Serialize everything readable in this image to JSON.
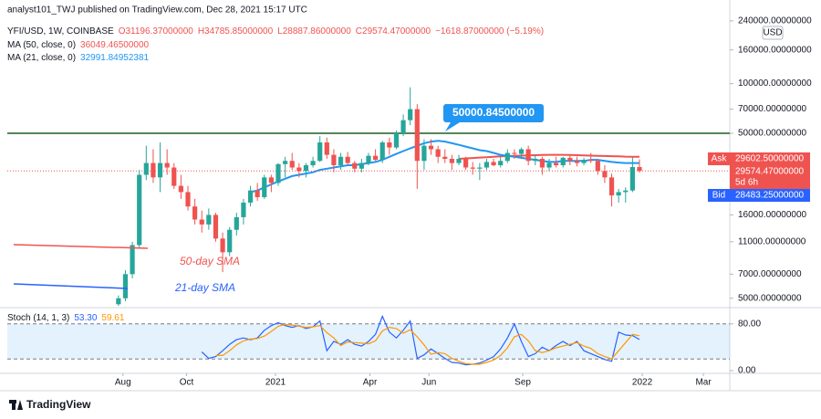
{
  "publisher": "analyst101_TWJ published on TradingView.com, Dec 28, 2021 15:17 UTC",
  "footer": "TradingView",
  "chart_data": [
    {
      "type": "candlestick",
      "symbol": "YFI/USD, 1W, COINBASE",
      "header_values": [
        "O31196.37000000",
        "H34785.85000000",
        "L28887.86000000",
        "C29574.47000000",
        "−1618.87000000 (−5.19%)"
      ],
      "open": [
        4600,
        5000,
        7000,
        10500,
        28000,
        33000,
        27000,
        33000,
        31000,
        24000,
        22000,
        18000,
        15000,
        14000,
        16000,
        11500,
        9500,
        13000,
        15500,
        19000,
        22500,
        20500,
        27000,
        25000,
        32500,
        34000,
        31000,
        29500,
        32000,
        34000,
        44000,
        37000,
        32000,
        36000,
        33000,
        30500,
        33000,
        36500,
        34500,
        44000,
        41000,
        50000,
        60000,
        70000,
        34000,
        42000,
        40000,
        36000,
        35000,
        33000,
        35000,
        31000,
        30500,
        31000,
        33500,
        32000,
        34000,
        38000,
        37500,
        40000,
        34000,
        35000,
        31000,
        33000,
        32000,
        35500,
        34000,
        33000,
        34500,
        34000,
        29500,
        27000,
        21000,
        22000,
        22500,
        31196.37
      ],
      "high": [
        5200,
        7400,
        11000,
        30000,
        42000,
        40000,
        44000,
        40000,
        33000,
        28000,
        24000,
        20000,
        17000,
        17500,
        16500,
        12500,
        13500,
        16500,
        20000,
        24000,
        25000,
        28000,
        28000,
        33000,
        36000,
        38000,
        33000,
        33000,
        36000,
        48000,
        47000,
        40000,
        38000,
        38500,
        34000,
        35000,
        38000,
        40000,
        45000,
        47000,
        52000,
        65000,
        95000,
        75000,
        46000,
        46000,
        42000,
        40000,
        37000,
        37000,
        36000,
        33500,
        33000,
        35000,
        35000,
        36000,
        40000,
        40000,
        41000,
        42000,
        37000,
        36000,
        35000,
        36000,
        36000,
        37000,
        36000,
        35500,
        38000,
        35000,
        32000,
        28500,
        23000,
        23500,
        36000,
        34785.85
      ],
      "low": [
        4500,
        4800,
        6600,
        10000,
        26000,
        25000,
        22000,
        28000,
        23000,
        20000,
        17000,
        14000,
        12500,
        13000,
        11000,
        7200,
        9000,
        12000,
        14000,
        18000,
        19500,
        20000,
        22000,
        24000,
        27000,
        30000,
        27000,
        27000,
        31000,
        33500,
        35000,
        29000,
        30000,
        32000,
        29000,
        29000,
        32000,
        34000,
        33000,
        37000,
        40000,
        48000,
        56000,
        23000,
        30000,
        37000,
        33000,
        33000,
        30000,
        32000,
        30000,
        28000,
        26000,
        30000,
        31500,
        31000,
        33000,
        35000,
        35000,
        32000,
        32000,
        28000,
        29500,
        31000,
        31000,
        32000,
        31500,
        32000,
        33000,
        28000,
        25000,
        18000,
        19000,
        19000,
        22000,
        28887.86
      ],
      "close": [
        5000,
        7000,
        10500,
        28000,
        33000,
        27000,
        33000,
        31000,
        24000,
        22000,
        18000,
        15000,
        14000,
        16000,
        11500,
        9500,
        13000,
        15500,
        19000,
        22500,
        20500,
        27000,
        25000,
        32500,
        34000,
        31000,
        29500,
        32000,
        34000,
        44000,
        37000,
        32000,
        36000,
        33000,
        30500,
        33000,
        36500,
        34500,
        44000,
        41000,
        50000,
        60000,
        70000,
        34000,
        42000,
        40000,
        36000,
        35000,
        33000,
        35000,
        31000,
        30500,
        31000,
        33500,
        32000,
        34000,
        38000,
        37500,
        40000,
        34000,
        35000,
        31000,
        33000,
        32000,
        35500,
        34000,
        33000,
        34500,
        34000,
        29500,
        27000,
        21000,
        22000,
        22500,
        31200,
        29574.47
      ],
      "up_color": "#26a69a",
      "down_color": "#ef5350",
      "log_scale": true,
      "ylim": [
        4500,
        290000
      ],
      "yticks": [
        {
          "value": 240000,
          "label": "240000.00000000"
        },
        {
          "value": 160000,
          "label": "160000.00000000"
        },
        {
          "value": 100000,
          "label": "100000.00000000"
        },
        {
          "value": 70000,
          "label": "70000.00000000"
        },
        {
          "value": 50000,
          "label": "50000.00000000"
        },
        {
          "value": 16000,
          "label": "16000.00000000"
        },
        {
          "value": 11000,
          "label": "11000.00000000"
        },
        {
          "value": 7000,
          "label": "7000.00000000"
        },
        {
          "value": 5000,
          "label": "5000.00000000"
        }
      ],
      "y_unit": "USD",
      "xlim": [
        -16,
        88
      ],
      "xticks": [
        {
          "value": 0.65,
          "label": "Aug"
        },
        {
          "value": 9.8,
          "label": "Oct"
        },
        {
          "value": 22.6,
          "label": "2021"
        },
        {
          "value": 36.2,
          "label": "Apr"
        },
        {
          "value": 44.7,
          "label": "Jun"
        },
        {
          "value": 58.2,
          "label": "Sep"
        },
        {
          "value": 75.4,
          "label": "2022"
        },
        {
          "value": 84.2,
          "label": "Mar"
        }
      ],
      "moving_averages": [
        {
          "name": "MA (50, close, 0)",
          "value_label": "36049.46500000",
          "color": "#ef5350",
          "values": [
            null,
            null,
            null,
            null,
            null,
            null,
            null,
            null,
            null,
            null,
            null,
            null,
            null,
            null,
            null,
            null,
            null,
            null,
            null,
            null,
            null,
            null,
            null,
            null,
            null,
            null,
            null,
            null,
            null,
            null,
            null,
            null,
            null,
            null,
            null,
            null,
            null,
            null,
            null,
            null,
            null,
            null,
            null,
            null,
            null,
            null,
            null,
            null,
            null,
            35000,
            35200,
            35400,
            35600,
            35800,
            36000,
            36200,
            36400,
            36500,
            36600,
            36700,
            36800,
            36900,
            37000,
            37000,
            37000,
            36900,
            36800,
            36700,
            36600,
            36500,
            36400,
            36300,
            36200,
            36100,
            36050,
            36049.47
          ]
        },
        {
          "name": "MA (21, close, 0)",
          "value_label": "32991.84952381",
          "color": "#2196f3",
          "values": [
            null,
            null,
            null,
            null,
            null,
            null,
            null,
            null,
            null,
            null,
            null,
            null,
            null,
            null,
            null,
            null,
            null,
            null,
            null,
            22000,
            22500,
            23500,
            24500,
            25500,
            26500,
            27500,
            28000,
            28500,
            29000,
            30000,
            30500,
            31000,
            31500,
            32000,
            32000,
            32500,
            33000,
            33500,
            34500,
            36000,
            37500,
            39000,
            40500,
            42000,
            43500,
            44500,
            45000,
            44500,
            43500,
            42500,
            41500,
            40500,
            39500,
            39000,
            38000,
            37000,
            36500,
            36000,
            35500,
            35000,
            34500,
            34000,
            33500,
            33500,
            34000,
            34000,
            34000,
            34000,
            34500,
            34500,
            34000,
            33500,
            33200,
            33000,
            33000,
            32991.85
          ]
        }
      ],
      "horizontal_line": {
        "value": 50000.845,
        "label": "50000.84500000",
        "color": "#1b5e20"
      },
      "last_price": 29574.47,
      "price_labels": {
        "ask_title": "Ask",
        "ask": "29602.50000000",
        "last": "29574.47000000",
        "countdown": "5d 6h",
        "bid_title": "Bid",
        "bid": "28483.25000000"
      },
      "annotations": [
        "50-day SMA",
        "21-day SMA"
      ]
    },
    {
      "type": "stochastic",
      "name": "Stoch (14, 1, 3)",
      "ylim": [
        0,
        100
      ],
      "yticks": [
        {
          "value": 80,
          "label": "80.00"
        },
        {
          "value": 0,
          "label": "0.00"
        }
      ],
      "band": [
        20,
        80
      ],
      "series": [
        {
          "color": "#2962ff",
          "value_label": "53.30",
          "values": [
            null,
            null,
            null,
            null,
            null,
            null,
            null,
            null,
            null,
            null,
            null,
            null,
            32,
            21,
            24,
            34,
            45,
            53,
            56,
            53,
            56,
            69,
            77,
            82,
            77,
            74,
            77,
            72,
            75,
            85,
            34,
            50,
            45,
            53,
            45,
            42,
            50,
            62,
            93,
            66,
            56,
            69,
            85,
            21,
            27,
            37,
            29,
            21,
            14,
            13,
            10,
            11,
            13,
            18,
            24,
            37,
            56,
            80,
            50,
            24,
            29,
            40,
            34,
            43,
            50,
            43,
            50,
            34,
            29,
            24,
            19,
            16,
            66,
            61,
            60,
            53.3
          ]
        },
        {
          "color": "#ff9800",
          "value_label": "59.61",
          "values": [
            null,
            null,
            null,
            null,
            null,
            null,
            null,
            null,
            null,
            null,
            null,
            null,
            null,
            null,
            26,
            26,
            34,
            44,
            51,
            54,
            55,
            59,
            67,
            76,
            79,
            78,
            76,
            74,
            75,
            77,
            65,
            56,
            43,
            49,
            48,
            47,
            46,
            51,
            68,
            74,
            72,
            64,
            70,
            58,
            44,
            28,
            31,
            29,
            21,
            16,
            12,
            11,
            11,
            14,
            18,
            26,
            39,
            58,
            62,
            51,
            34,
            31,
            34,
            39,
            42,
            45,
            48,
            42,
            38,
            29,
            24,
            20,
            34,
            48,
            62,
            59.61
          ]
        }
      ]
    }
  ]
}
